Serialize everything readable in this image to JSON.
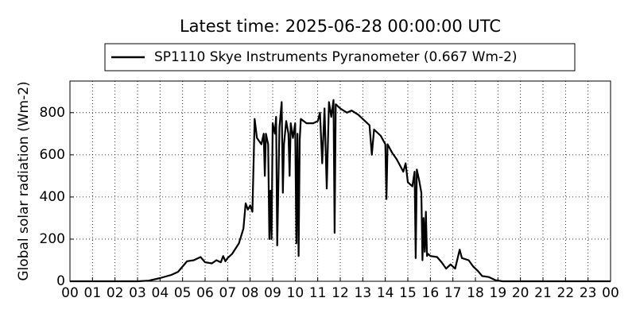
{
  "chart_data": {
    "type": "line",
    "title": "Latest time: 2025-06-28 00:00:00 UTC",
    "ylabel": "Global solar radiation (Wm-2)",
    "series": [
      {
        "name": "SP1110 Skye Instruments Pyranometer (0.667 Wm-2)",
        "color": "#000000",
        "x": [
          0,
          3,
          3.5,
          4,
          4.5,
          4.8,
          5,
          5.2,
          5.5,
          5.8,
          6,
          6.3,
          6.5,
          6.7,
          6.8,
          6.9,
          7,
          7.2,
          7.5,
          7.7,
          7.8,
          7.9,
          8.0,
          8.1,
          8.2,
          8.3,
          8.5,
          8.6,
          8.65,
          8.7,
          8.8,
          8.85,
          8.9,
          8.95,
          9.0,
          9.1,
          9.15,
          9.2,
          9.3,
          9.4,
          9.45,
          9.5,
          9.6,
          9.7,
          9.75,
          9.8,
          9.9,
          10.0,
          10.05,
          10.1,
          10.15,
          10.2,
          10.25,
          10.5,
          10.8,
          11.0,
          11.1,
          11.2,
          11.3,
          11.4,
          11.5,
          11.6,
          11.7,
          11.75,
          11.8,
          12.0,
          12.3,
          12.5,
          12.8,
          13.0,
          13.3,
          13.4,
          13.5,
          13.8,
          14.0,
          14.05,
          14.1,
          14.3,
          14.5,
          14.6,
          14.8,
          14.9,
          15.0,
          15.2,
          15.3,
          15.35,
          15.4,
          15.5,
          15.6,
          15.65,
          15.7,
          15.75,
          15.8,
          15.85,
          15.9,
          16.0,
          16.3,
          16.5,
          16.7,
          16.9,
          17.1,
          17.3,
          17.4,
          17.7,
          17.9,
          18.1,
          18.3,
          18.6,
          18.9,
          19.2,
          24
        ],
        "values": [
          0,
          0,
          3,
          15,
          30,
          45,
          70,
          95,
          100,
          115,
          90,
          85,
          100,
          90,
          120,
          95,
          110,
          130,
          180,
          250,
          370,
          340,
          360,
          330,
          770,
          680,
          650,
          700,
          500,
          700,
          650,
          200,
          430,
          200,
          750,
          700,
          780,
          170,
          730,
          850,
          420,
          650,
          760,
          700,
          500,
          750,
          680,
          750,
          180,
          700,
          120,
          670,
          770,
          750,
          750,
          760,
          800,
          560,
          820,
          440,
          850,
          780,
          860,
          230,
          840,
          820,
          800,
          810,
          790,
          770,
          740,
          600,
          720,
          690,
          650,
          390,
          650,
          610,
          580,
          560,
          520,
          560,
          470,
          450,
          520,
          110,
          530,
          480,
          420,
          100,
          300,
          140,
          330,
          120,
          130,
          120,
          115,
          90,
          60,
          80,
          60,
          150,
          110,
          100,
          70,
          50,
          25,
          20,
          5,
          0,
          0
        ]
      }
    ],
    "xlim": [
      0,
      24
    ],
    "xticks": [
      {
        "value": 0,
        "label": "00"
      },
      {
        "value": 1,
        "label": "01"
      },
      {
        "value": 2,
        "label": "02"
      },
      {
        "value": 3,
        "label": "03"
      },
      {
        "value": 4,
        "label": "04"
      },
      {
        "value": 5,
        "label": "05"
      },
      {
        "value": 6,
        "label": "06"
      },
      {
        "value": 7,
        "label": "07"
      },
      {
        "value": 8,
        "label": "08"
      },
      {
        "value": 9,
        "label": "09"
      },
      {
        "value": 10,
        "label": "10"
      },
      {
        "value": 11,
        "label": "11"
      },
      {
        "value": 12,
        "label": "12"
      },
      {
        "value": 13,
        "label": "13"
      },
      {
        "value": 14,
        "label": "14"
      },
      {
        "value": 15,
        "label": "15"
      },
      {
        "value": 16,
        "label": "16"
      },
      {
        "value": 17,
        "label": "17"
      },
      {
        "value": 18,
        "label": "18"
      },
      {
        "value": 19,
        "label": "19"
      },
      {
        "value": 20,
        "label": "20"
      },
      {
        "value": 21,
        "label": "21"
      },
      {
        "value": 22,
        "label": "22"
      },
      {
        "value": 23,
        "label": "23"
      },
      {
        "value": 24,
        "label": "00"
      }
    ],
    "ylim": [
      0,
      950
    ],
    "yticks": [
      0,
      200,
      400,
      600,
      800
    ],
    "grid": true
  }
}
